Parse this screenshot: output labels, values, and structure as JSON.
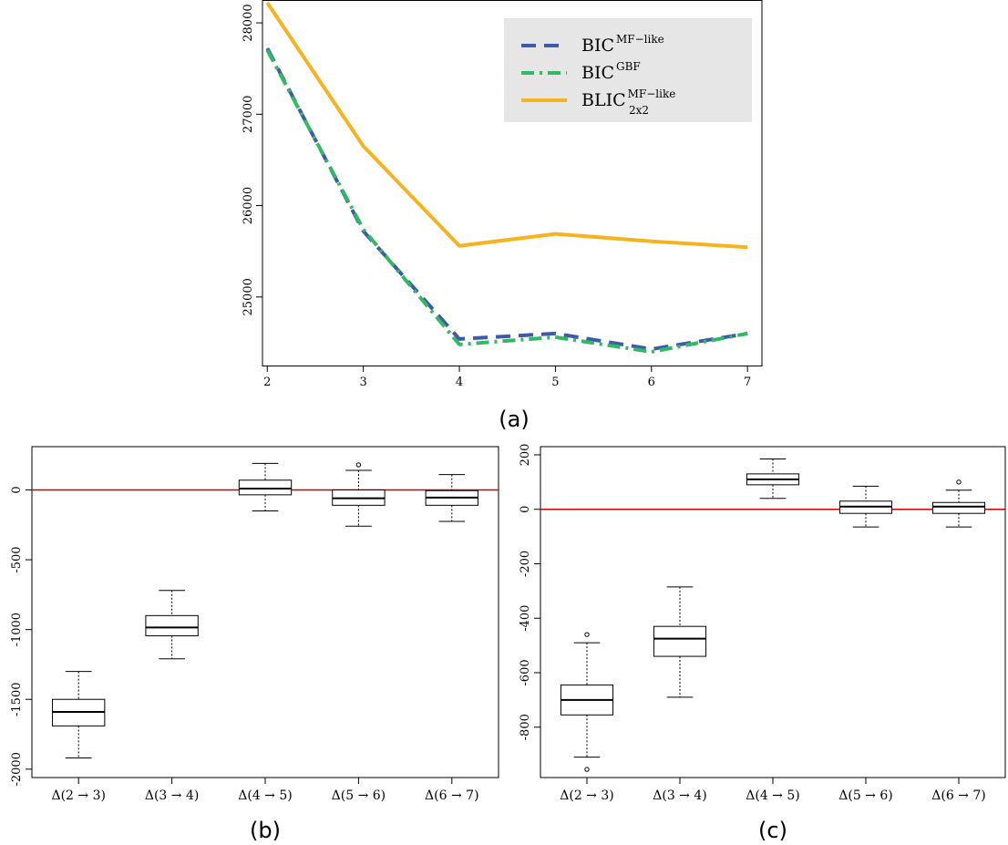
{
  "chart_data": [
    {
      "type": "line",
      "caption": "(a)",
      "x": [
        2,
        3,
        4,
        5,
        6,
        7
      ],
      "xlim": [
        1.95,
        7.15
      ],
      "ylim": [
        24250,
        28250
      ],
      "xticks": [
        2,
        3,
        4,
        5,
        6,
        7
      ],
      "yticks": [
        25000,
        26000,
        27000,
        28000
      ],
      "legend_position": "top-right",
      "legend_background": "#e6e6e6",
      "series": [
        {
          "name_main": "BIC",
          "name_sup": "MF−like",
          "name_sub": "",
          "color": "#3e5aa8",
          "dash": "dashed",
          "values": [
            27720,
            25720,
            24540,
            24600,
            24430,
            24600
          ]
        },
        {
          "name_main": "BIC",
          "name_sup": "GBF",
          "name_sub": "",
          "color": "#33b866",
          "dash": "dotdash",
          "values": [
            27700,
            25740,
            24480,
            24560,
            24400,
            24600
          ]
        },
        {
          "name_main": "BLIC",
          "name_sup": "MF−like",
          "name_sub": "2x2",
          "color": "#f5b320",
          "dash": "solid",
          "values": [
            28220,
            26650,
            25560,
            25690,
            25610,
            25545
          ]
        }
      ]
    },
    {
      "type": "box",
      "caption": "(b)",
      "categories": [
        "Δ(2 → 3)",
        "Δ(3 → 4)",
        "Δ(4 → 5)",
        "Δ(5 → 6)",
        "Δ(6 → 7)"
      ],
      "ylim": [
        -2060,
        310
      ],
      "yticks": [
        -2000,
        -1500,
        -1000,
        -500,
        0
      ],
      "reference_line": {
        "y": 0,
        "color": "#cc0000"
      },
      "boxes": [
        {
          "min": -1920,
          "q1": -1690,
          "median": -1590,
          "q3": -1500,
          "max": -1300,
          "outliers": []
        },
        {
          "min": -1210,
          "q1": -1045,
          "median": -985,
          "q3": -900,
          "max": -720,
          "outliers": []
        },
        {
          "min": -150,
          "q1": -35,
          "median": 10,
          "q3": 70,
          "max": 190,
          "outliers": []
        },
        {
          "min": -260,
          "q1": -110,
          "median": -60,
          "q3": 0,
          "max": 140,
          "outliers": [
            180
          ]
        },
        {
          "min": -225,
          "q1": -110,
          "median": -55,
          "q3": -5,
          "max": 110,
          "outliers": []
        }
      ]
    },
    {
      "type": "box",
      "caption": "(c)",
      "categories": [
        "Δ(2 → 3)",
        "Δ(3 → 4)",
        "Δ(4 → 5)",
        "Δ(5 → 6)",
        "Δ(6 → 7)"
      ],
      "ylim": [
        -985,
        230
      ],
      "yticks": [
        -800,
        -600,
        -400,
        -200,
        0,
        200
      ],
      "reference_line": {
        "y": 0,
        "color": "#cc0000"
      },
      "boxes": [
        {
          "min": -910,
          "q1": -755,
          "median": -700,
          "q3": -645,
          "max": -490,
          "outliers": [
            -460,
            -955
          ]
        },
        {
          "min": -690,
          "q1": -540,
          "median": -475,
          "q3": -430,
          "max": -285,
          "outliers": []
        },
        {
          "min": 40,
          "q1": 90,
          "median": 110,
          "q3": 130,
          "max": 185,
          "outliers": []
        },
        {
          "min": -65,
          "q1": -15,
          "median": 10,
          "q3": 30,
          "max": 85,
          "outliers": []
        },
        {
          "min": -65,
          "q1": -15,
          "median": 10,
          "q3": 25,
          "max": 70,
          "outliers": [
            100
          ]
        }
      ]
    }
  ]
}
